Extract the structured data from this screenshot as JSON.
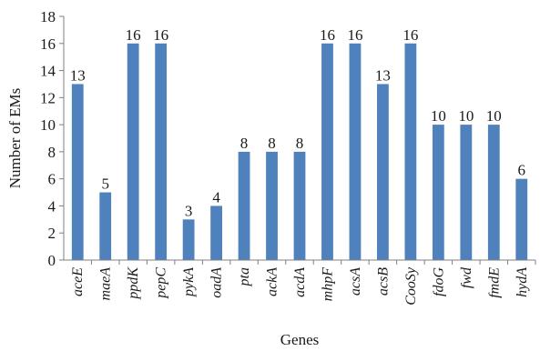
{
  "chart_data": {
    "type": "bar",
    "categories": [
      "aceE",
      "maeA",
      "ppdK",
      "pepC",
      "pykA",
      "oadA",
      "pta",
      "ackA",
      "acdA",
      "mhpF",
      "acsA",
      "acsB",
      "CooSy",
      "fdoG",
      "fwd",
      "fmdE",
      "hydA"
    ],
    "values": [
      13,
      5,
      16,
      16,
      3,
      4,
      8,
      8,
      8,
      16,
      16,
      13,
      16,
      10,
      10,
      10,
      6
    ],
    "xlabel": "Genes",
    "ylabel": "Number of EMs",
    "ylim": [
      0,
      18
    ],
    "yticks": [
      0,
      2,
      4,
      6,
      8,
      10,
      12,
      14,
      16,
      18
    ],
    "grid": false,
    "legend": "none",
    "bar_color": "#4f81bd"
  }
}
